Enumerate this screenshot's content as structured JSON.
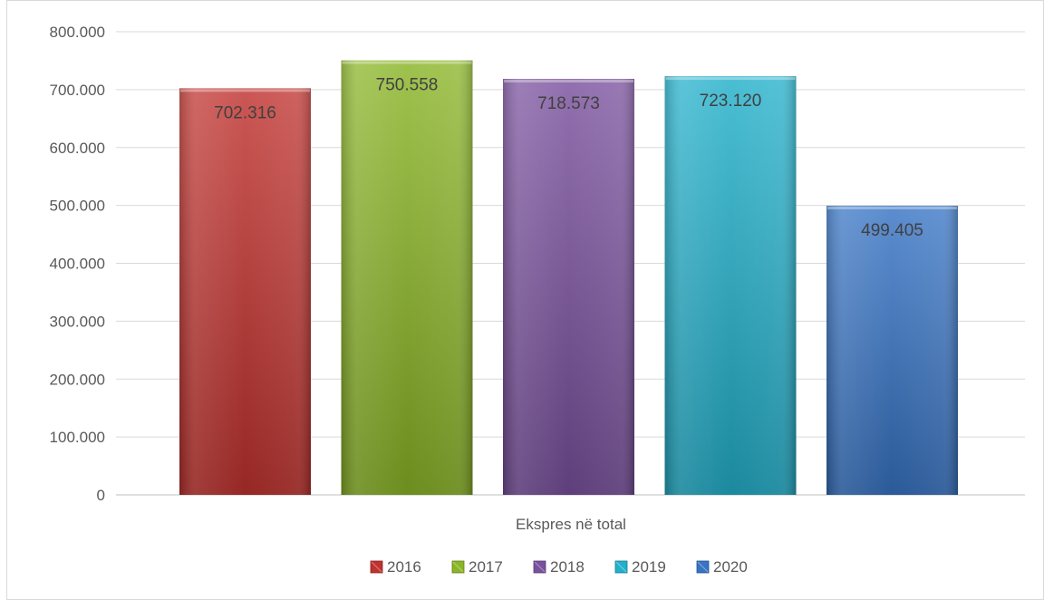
{
  "chart_data": {
    "type": "bar",
    "title": "",
    "categories": [
      "Ekspres në total"
    ],
    "xlabel": "Ekspres në total",
    "ylabel": "",
    "ylim": [
      0,
      800000
    ],
    "ytick_step": 100000,
    "ytick_labels": [
      "0",
      "100.000",
      "200.000",
      "300.000",
      "400.000",
      "500.000",
      "600.000",
      "700.000",
      "800.000"
    ],
    "grid": true,
    "legend_position": "bottom",
    "series": [
      {
        "name": "2016",
        "values": [
          702316
        ],
        "label": "702.316",
        "color": "#c0322e"
      },
      {
        "name": "2017",
        "values": [
          750558
        ],
        "label": "750.558",
        "color": "#8ab526"
      },
      {
        "name": "2018",
        "values": [
          718573
        ],
        "label": "718.573",
        "color": "#7a519e"
      },
      {
        "name": "2019",
        "values": [
          723120
        ],
        "label": "723.120",
        "color": "#22b0cb"
      },
      {
        "name": "2020",
        "values": [
          499405
        ],
        "label": "499.405",
        "color": "#3774c4"
      }
    ]
  }
}
